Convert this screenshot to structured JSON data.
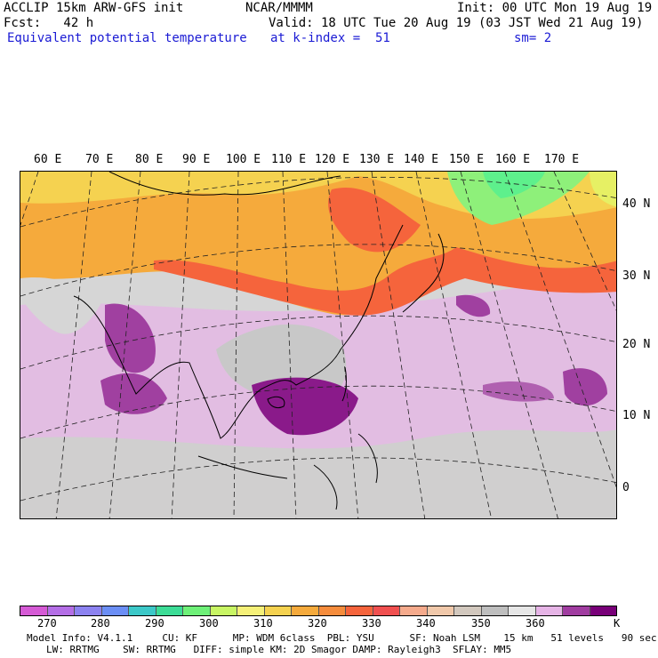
{
  "header": {
    "model": "ACCLIP 15km ARW-GFS init",
    "fcst": "Fcst:   42 h",
    "org": "NCAR/MMMM",
    "init": "Init: 00 UTC Mon 19 Aug 19",
    "valid": "Valid: 18 UTC Tue 20 Aug 19 (03 JST Wed 21 Aug 19)",
    "field": "Equivalent potential temperature",
    "level": "at k-index =  51",
    "smooth": "sm= 2"
  },
  "map": {
    "lon_labels": [
      "60 E",
      "70 E",
      "80 E",
      "90 E",
      "100 E",
      "110 E",
      "120 E",
      "130 E",
      "140 E",
      "150 E",
      "160 E",
      "170 E"
    ],
    "lat_labels": [
      "40 N",
      "30 N",
      "20 N",
      "10 N",
      "0"
    ]
  },
  "colorbar": {
    "colors": [
      "#d55ad5",
      "#b46ee6",
      "#8c82f0",
      "#6b8ef5",
      "#3cc8c8",
      "#3cdc96",
      "#6ef078",
      "#c8f564",
      "#f5f078",
      "#f5d250",
      "#f5aa3c",
      "#f58c3c",
      "#f5643c",
      "#f05050",
      "#f5aa8c",
      "#f0c8aa",
      "#d2c8be",
      "#bebebe",
      "#e6e6e6",
      "#e6b4e6",
      "#a03ca0",
      "#780078"
    ],
    "labels": [
      "270",
      "280",
      "290",
      "300",
      "310",
      "320",
      "330",
      "340",
      "350",
      "360"
    ],
    "unit": "K"
  },
  "footer": {
    "line1": "Model Info: V4.1.1     CU: KF      MP: WDM 6class  PBL: YSU      SF: Noah LSM    15 km   51 levels   90 sec",
    "line2": "LW: RRTMG    SW: RRTMG   DIFF: simple KM: 2D Smagor DAMP: Rayleigh3  SFLAY: MM5"
  }
}
